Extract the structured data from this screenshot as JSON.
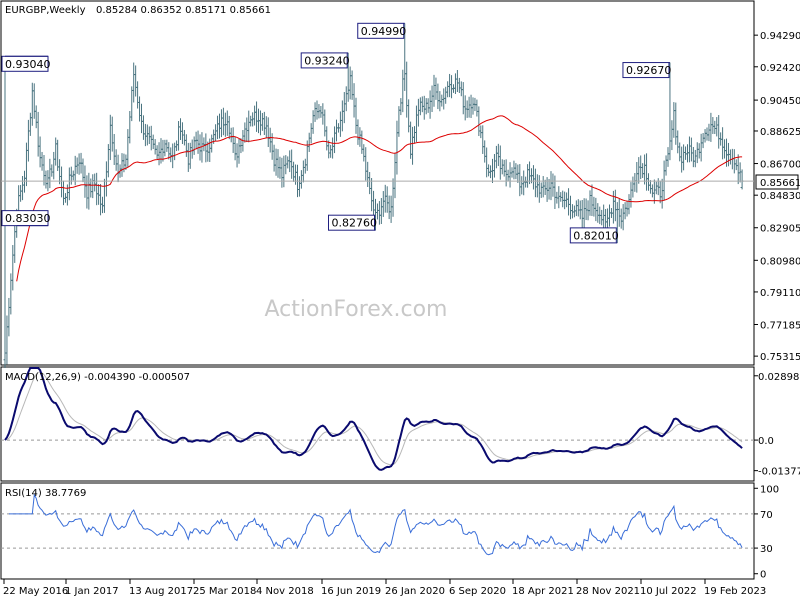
{
  "chart_data": {
    "type": "ohlc",
    "symbol_label": "EURGBP,Weekly",
    "ohlc_label": "0.85284 0.86352 0.85171 0.85661",
    "watermark": "ActionForex.com",
    "current_price_label": "0.85661",
    "x_tick_labels": [
      "22 May 2016",
      "1 Jan 2017",
      "13 Aug 2017",
      "25 Mar 2018",
      "4 Nov 2018",
      "16 Jun 2019",
      "26 Jan 2020",
      "6 Sep 2020",
      "18 Apr 2021",
      "28 Nov 2021",
      "10 Jul 2022",
      "19 Feb 2023"
    ],
    "price_axis_labels": [
      "0.94290",
      "0.92420",
      "0.90450",
      "0.88625",
      "0.86700",
      "0.84830",
      "0.82905",
      "0.80980",
      "0.79110",
      "0.77185",
      "0.75315"
    ],
    "price_axis_values": [
      0.9429,
      0.9242,
      0.9045,
      0.88625,
      0.867,
      0.8483,
      0.82905,
      0.8098,
      0.7911,
      0.77185,
      0.75315
    ],
    "ylim": [
      0.7485,
      0.9625
    ],
    "annotations": [
      {
        "label": "0.93040",
        "value": 0.9304,
        "week": 0
      },
      {
        "label": "0.83030",
        "value": 0.8303,
        "week": 6
      },
      {
        "label": "0.93240",
        "value": 0.9324,
        "week": 176
      },
      {
        "label": "0.82760",
        "value": 0.8276,
        "week": 190
      },
      {
        "label": "0.94990",
        "value": 0.9499,
        "week": 205
      },
      {
        "label": "0.82010",
        "value": 0.8201,
        "week": 314
      },
      {
        "label": "0.92670",
        "value": 0.9267,
        "week": 341
      }
    ],
    "close_anchors": [
      [
        0,
        0.755
      ],
      [
        3,
        0.8
      ],
      [
        6,
        0.84
      ],
      [
        10,
        0.86
      ],
      [
        14,
        0.91
      ],
      [
        18,
        0.87
      ],
      [
        22,
        0.855
      ],
      [
        26,
        0.875
      ],
      [
        30,
        0.845
      ],
      [
        34,
        0.86
      ],
      [
        38,
        0.87
      ],
      [
        42,
        0.85
      ],
      [
        46,
        0.855
      ],
      [
        50,
        0.84
      ],
      [
        54,
        0.89
      ],
      [
        58,
        0.86
      ],
      [
        62,
        0.87
      ],
      [
        66,
        0.92
      ],
      [
        70,
        0.89
      ],
      [
        74,
        0.88
      ],
      [
        78,
        0.87
      ],
      [
        82,
        0.88
      ],
      [
        86,
        0.87
      ],
      [
        90,
        0.89
      ],
      [
        94,
        0.87
      ],
      [
        98,
        0.88
      ],
      [
        102,
        0.875
      ],
      [
        106,
        0.88
      ],
      [
        110,
        0.89
      ],
      [
        114,
        0.895
      ],
      [
        118,
        0.87
      ],
      [
        122,
        0.885
      ],
      [
        126,
        0.895
      ],
      [
        130,
        0.895
      ],
      [
        134,
        0.89
      ],
      [
        138,
        0.87
      ],
      [
        142,
        0.86
      ],
      [
        146,
        0.87
      ],
      [
        150,
        0.855
      ],
      [
        154,
        0.87
      ],
      [
        158,
        0.895
      ],
      [
        162,
        0.9
      ],
      [
        166,
        0.87
      ],
      [
        170,
        0.885
      ],
      [
        174,
        0.9
      ],
      [
        177,
        0.915
      ],
      [
        180,
        0.89
      ],
      [
        184,
        0.87
      ],
      [
        187,
        0.85
      ],
      [
        190,
        0.835
      ],
      [
        194,
        0.845
      ],
      [
        198,
        0.84
      ],
      [
        202,
        0.9
      ],
      [
        205,
        0.92
      ],
      [
        208,
        0.875
      ],
      [
        212,
        0.9
      ],
      [
        216,
        0.9
      ],
      [
        220,
        0.91
      ],
      [
        224,
        0.905
      ],
      [
        228,
        0.915
      ],
      [
        232,
        0.915
      ],
      [
        236,
        0.9
      ],
      [
        240,
        0.905
      ],
      [
        244,
        0.885
      ],
      [
        248,
        0.86
      ],
      [
        252,
        0.87
      ],
      [
        256,
        0.86
      ],
      [
        260,
        0.865
      ],
      [
        264,
        0.855
      ],
      [
        268,
        0.86
      ],
      [
        272,
        0.855
      ],
      [
        276,
        0.85
      ],
      [
        280,
        0.855
      ],
      [
        284,
        0.845
      ],
      [
        288,
        0.845
      ],
      [
        292,
        0.84
      ],
      [
        296,
        0.835
      ],
      [
        300,
        0.845
      ],
      [
        304,
        0.84
      ],
      [
        308,
        0.83
      ],
      [
        312,
        0.845
      ],
      [
        316,
        0.835
      ],
      [
        320,
        0.845
      ],
      [
        324,
        0.865
      ],
      [
        328,
        0.865
      ],
      [
        332,
        0.85
      ],
      [
        336,
        0.85
      ],
      [
        340,
        0.87
      ],
      [
        343,
        0.895
      ],
      [
        346,
        0.87
      ],
      [
        350,
        0.875
      ],
      [
        354,
        0.87
      ],
      [
        358,
        0.885
      ],
      [
        362,
        0.89
      ],
      [
        366,
        0.885
      ],
      [
        370,
        0.875
      ],
      [
        374,
        0.87
      ],
      [
        378,
        0.856
      ]
    ],
    "macd": {
      "label": "MACD(12,26,9) -0.004390 -0.000507",
      "axis_labels": [
        "0.028988",
        "0.0",
        "-0.013779"
      ],
      "axis_values": [
        0.028988,
        0.0,
        -0.013779
      ],
      "ylim": [
        -0.018,
        0.0325
      ]
    },
    "rsi": {
      "label": "RSI(14) 38.7769",
      "period": 14,
      "axis_labels": [
        "100",
        "70",
        "30",
        "0"
      ],
      "axis_values": [
        100,
        70,
        30,
        0
      ],
      "levels": [
        70,
        30
      ],
      "ylim": [
        -5,
        105
      ]
    },
    "moving_average_color": "#dd0000",
    "macd_color": "#0a0a6e",
    "signal_color": "#b8b8b8",
    "bar_color": "#4a7480",
    "rsi_color": "#3a6ed8"
  }
}
